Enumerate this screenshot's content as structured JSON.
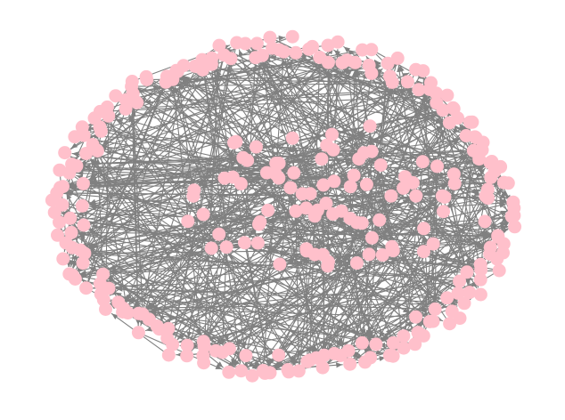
{
  "graph": {
    "type": "directed-network",
    "node_count": 300,
    "edge_count": 650,
    "seed": 7,
    "node_color": "#ffc0cb",
    "edge_color": "#808080",
    "background": "#ffffff",
    "arrowheads": true,
    "layout_style": "elliptical-ring-with-dense-core"
  }
}
